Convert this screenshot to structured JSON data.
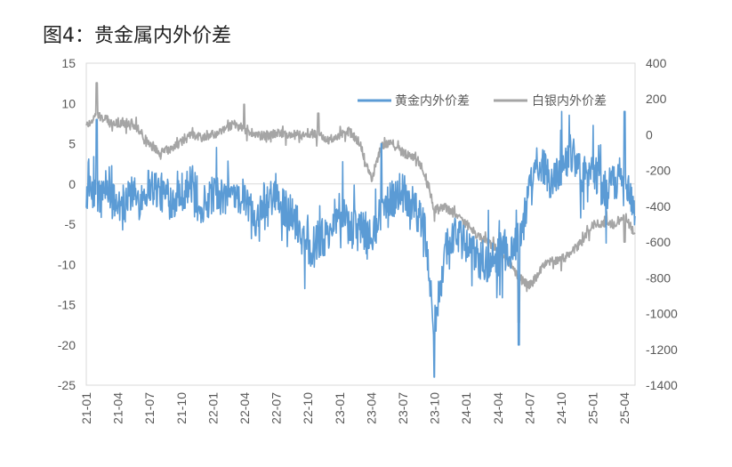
{
  "chart_data": {
    "type": "line",
    "title": "图4：贵金属内外价差",
    "legend_position": "top-right",
    "grid": false,
    "left_axis": {
      "min": -25,
      "max": 15,
      "ticks": [
        "15",
        "10",
        "5",
        "0",
        "-5",
        "-10",
        "-15",
        "-20",
        "-25"
      ]
    },
    "right_axis": {
      "min": -1400,
      "max": 400,
      "ticks": [
        "400",
        "200",
        "0",
        "-200",
        "-400",
        "-600",
        "-800",
        "-1000",
        "-1200",
        "-1400"
      ]
    },
    "x_ticks": [
      "21-01",
      "21-04",
      "21-07",
      "21-10",
      "22-01",
      "22-04",
      "22-07",
      "22-10",
      "23-01",
      "23-04",
      "23-07",
      "23-10",
      "24-01",
      "24-04",
      "24-07",
      "24-10",
      "25-01",
      "25-04"
    ],
    "x_range": [
      "2021-01",
      "2025-05"
    ],
    "series": [
      {
        "name": "黄金内外价差",
        "axis": "left",
        "color": "#5b9bd5",
        "x": [
          "2021-01",
          "2021-02",
          "2021-03",
          "2021-04",
          "2021-05",
          "2021-06",
          "2021-07",
          "2021-08",
          "2021-09",
          "2021-10",
          "2021-11",
          "2021-12",
          "2022-01",
          "2022-02",
          "2022-03",
          "2022-04",
          "2022-05",
          "2022-06",
          "2022-07",
          "2022-08",
          "2022-09",
          "2022-10",
          "2022-11",
          "2022-12",
          "2023-01",
          "2023-02",
          "2023-03",
          "2023-04",
          "2023-05",
          "2023-06",
          "2023-07",
          "2023-08",
          "2023-09",
          "2023-10",
          "2023-11",
          "2023-12",
          "2024-01",
          "2024-02",
          "2024-03",
          "2024-04",
          "2024-05",
          "2024-06",
          "2024-07",
          "2024-08",
          "2024-09",
          "2024-10",
          "2024-11",
          "2024-12",
          "2025-01",
          "2025-02",
          "2025-03",
          "2025-04",
          "2025-05"
        ],
        "values": [
          -1,
          -2,
          -1,
          -3,
          -1,
          -2,
          0,
          -1,
          -2,
          -1,
          0,
          -3,
          -1,
          -2,
          -1,
          -2,
          -4,
          -3,
          -2,
          -3,
          -5,
          -8,
          -7,
          -6,
          -3,
          -6,
          -5,
          -7,
          -3,
          -2,
          -1,
          -3,
          -5,
          -18,
          -8,
          -6,
          -8,
          -9,
          -10,
          -9,
          -8,
          -7,
          -1,
          3,
          0,
          2,
          4,
          1,
          2,
          -1,
          0,
          2,
          -4
        ],
        "noise": 2.5,
        "spikes": [
          [
            "2023-10",
            -24
          ],
          [
            "2024-06",
            -20
          ],
          [
            "2024-10",
            9
          ],
          [
            "2025-04",
            9
          ],
          [
            "2021-02",
            8
          ],
          [
            "2023-05",
            5
          ]
        ]
      },
      {
        "name": "白银内外价差",
        "axis": "right",
        "color": "#a5a5a5",
        "x": [
          "2021-01",
          "2021-02",
          "2021-03",
          "2021-04",
          "2021-05",
          "2021-06",
          "2021-07",
          "2021-08",
          "2021-09",
          "2021-10",
          "2021-11",
          "2021-12",
          "2022-01",
          "2022-02",
          "2022-03",
          "2022-04",
          "2022-05",
          "2022-06",
          "2022-07",
          "2022-08",
          "2022-09",
          "2022-10",
          "2022-11",
          "2022-12",
          "2023-01",
          "2023-02",
          "2023-03",
          "2023-04",
          "2023-05",
          "2023-06",
          "2023-07",
          "2023-08",
          "2023-09",
          "2023-10",
          "2023-11",
          "2023-12",
          "2024-01",
          "2024-02",
          "2024-03",
          "2024-04",
          "2024-05",
          "2024-06",
          "2024-07",
          "2024-08",
          "2024-09",
          "2024-10",
          "2024-11",
          "2024-12",
          "2025-01",
          "2025-02",
          "2025-03",
          "2025-04",
          "2025-05"
        ],
        "values": [
          50,
          110,
          80,
          60,
          70,
          30,
          -60,
          -100,
          -80,
          -40,
          0,
          -20,
          0,
          20,
          60,
          30,
          0,
          -10,
          10,
          0,
          0,
          10,
          0,
          -30,
          0,
          20,
          -60,
          -250,
          -60,
          -50,
          -100,
          -120,
          -200,
          -420,
          -400,
          -450,
          -500,
          -560,
          -600,
          -640,
          -700,
          -800,
          -850,
          -760,
          -700,
          -700,
          -650,
          -600,
          -500,
          -500,
          -500,
          -450,
          -560
        ],
        "noise": 25,
        "spikes": [
          [
            "2021-02",
            290
          ],
          [
            "2022-04",
            170
          ],
          [
            "2022-11",
            120
          ],
          [
            "2024-06",
            -1050
          ],
          [
            "2025-04",
            -600
          ]
        ]
      }
    ]
  }
}
